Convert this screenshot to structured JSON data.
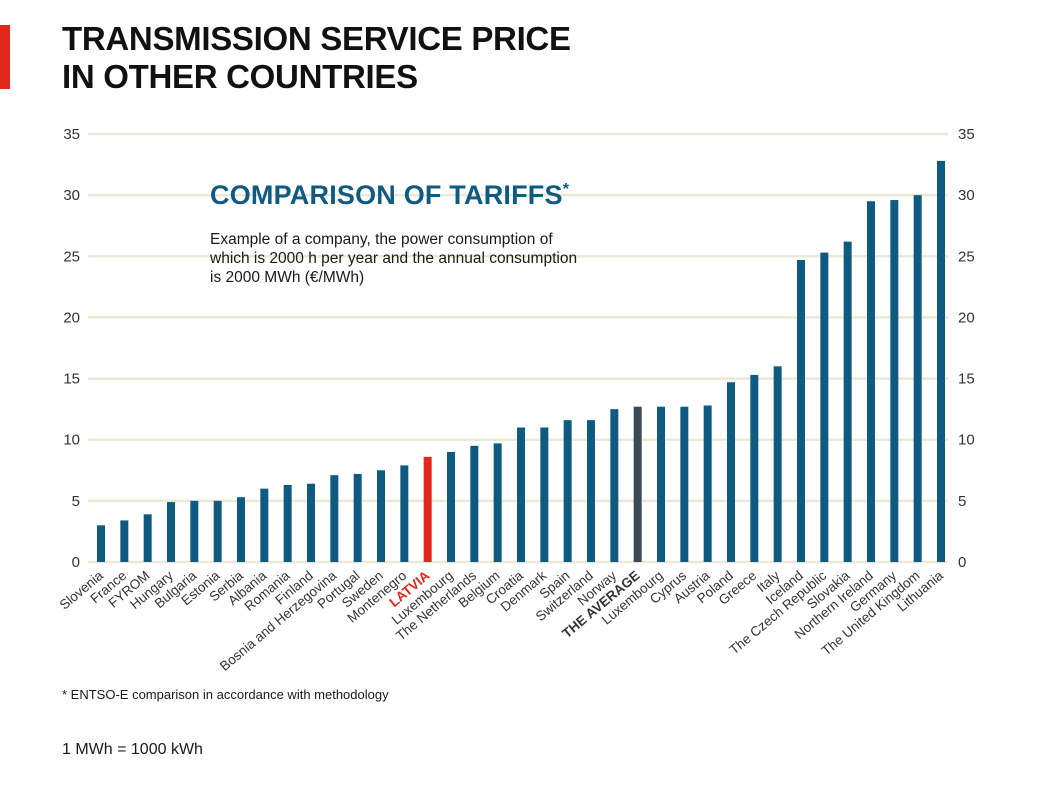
{
  "header": {
    "title_line1": "TRANSMISSION SERVICE PRICE",
    "title_line2": "IN OTHER COUNTRIES"
  },
  "inset": {
    "heading": "COMPARISON OF TARIFFS",
    "heading_mark": "*",
    "description": "Example of a company, the power consumption of which is 2000 h per year and the annual consumption is 2000 MWh (€/MWh)"
  },
  "footer": {
    "footnote": "* ENTSO-E comparison in accordance with methodology",
    "unit_note": "1 MWh = 1000 kWh"
  },
  "colors": {
    "bar": "#0e5a80",
    "highlight_bar": "#e1261c",
    "average_bar": "#3a4a55",
    "grid": "#ebe8d6",
    "axis_text": "#333333",
    "highlight_label": "#e1261c",
    "accent": "#e1261c"
  },
  "chart_data": {
    "type": "bar",
    "categories": [
      "Slovenia",
      "France",
      "FYROM",
      "Hungary",
      "Bulgaria",
      "Estonia",
      "Serbia",
      "Albania",
      "Romania",
      "Finland",
      "Bosnia and Herzegovina",
      "Portugal",
      "Sweden",
      "Montenegro",
      "LATVIA",
      "Luxembourg",
      "The Netherlands",
      "Belgium",
      "Croatia",
      "Denmark",
      "Spain",
      "Switzerland",
      "Norway",
      "THE AVERAGE",
      "Luxembourg",
      "Cyprus",
      "Austria",
      "Poland",
      "Greece",
      "Italy",
      "Iceland",
      "The Czech Republic",
      "Slovakia",
      "Northern Ireland",
      "Germany",
      "The United Kingdom",
      "Lithuania"
    ],
    "values": [
      3.0,
      3.4,
      3.9,
      4.9,
      5.0,
      5.0,
      5.3,
      6.0,
      6.3,
      6.4,
      7.1,
      7.2,
      7.5,
      7.9,
      8.6,
      9.0,
      9.5,
      9.7,
      11.0,
      11.0,
      11.6,
      11.6,
      12.5,
      12.7,
      12.7,
      12.7,
      12.8,
      14.7,
      15.3,
      16.0,
      24.7,
      25.3,
      26.2,
      29.5,
      29.6,
      30.0,
      32.8
    ],
    "highlight": {
      "LATVIA": "red",
      "THE AVERAGE": "dark"
    },
    "ylim": [
      0,
      35
    ],
    "yticks": [
      0,
      5,
      10,
      15,
      20,
      25,
      30,
      35
    ],
    "grid": true,
    "legend": "none",
    "xlabel": "",
    "ylabel": ""
  }
}
